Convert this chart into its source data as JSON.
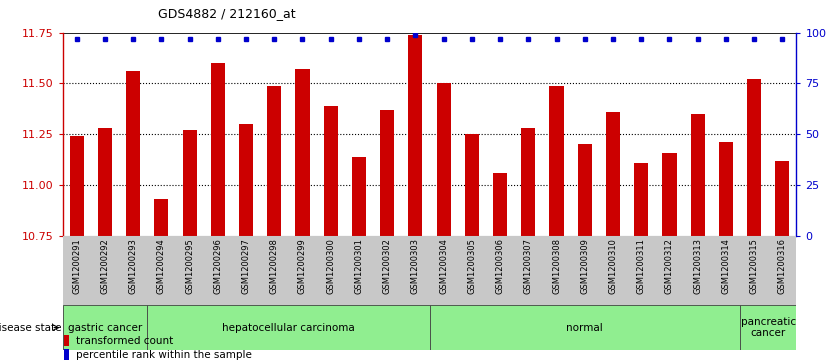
{
  "title": "GDS4882 / 212160_at",
  "samples": [
    "GSM1200291",
    "GSM1200292",
    "GSM1200293",
    "GSM1200294",
    "GSM1200295",
    "GSM1200296",
    "GSM1200297",
    "GSM1200298",
    "GSM1200299",
    "GSM1200300",
    "GSM1200301",
    "GSM1200302",
    "GSM1200303",
    "GSM1200304",
    "GSM1200305",
    "GSM1200306",
    "GSM1200307",
    "GSM1200308",
    "GSM1200309",
    "GSM1200310",
    "GSM1200311",
    "GSM1200312",
    "GSM1200313",
    "GSM1200314",
    "GSM1200315",
    "GSM1200316"
  ],
  "bar_values": [
    11.24,
    11.28,
    11.56,
    10.93,
    11.27,
    11.6,
    11.3,
    11.49,
    11.57,
    11.39,
    11.14,
    11.37,
    11.74,
    11.5,
    11.25,
    11.06,
    11.28,
    11.49,
    11.2,
    11.36,
    11.11,
    11.16,
    11.35,
    11.21,
    11.52,
    11.12
  ],
  "percentile_values": [
    97,
    97,
    97,
    97,
    97,
    97,
    97,
    97,
    97,
    97,
    97,
    97,
    99,
    97,
    97,
    97,
    97,
    97,
    97,
    97,
    97,
    97,
    97,
    97,
    97,
    97
  ],
  "ymin": 10.75,
  "ymax": 11.75,
  "y_ticks_left": [
    10.75,
    11.0,
    11.25,
    11.5,
    11.75
  ],
  "y_ticks_right": [
    0,
    25,
    50,
    75,
    100
  ],
  "bar_color": "#cc0000",
  "percentile_color": "#0000cc",
  "grid_color": "#333333",
  "xlabel_bg": "#c8c8c8",
  "groups": [
    {
      "label": "gastric cancer",
      "start": 0,
      "end": 2,
      "color": "#90ee90"
    },
    {
      "label": "hepatocellular carcinoma",
      "start": 3,
      "end": 12,
      "color": "#90ee90"
    },
    {
      "label": "normal",
      "start": 13,
      "end": 23,
      "color": "#90ee90"
    },
    {
      "label": "pancreatic\ncancer",
      "start": 24,
      "end": 25,
      "color": "#90ee90"
    }
  ],
  "legend_items": [
    {
      "color": "#cc0000",
      "label": "transformed count"
    },
    {
      "color": "#0000cc",
      "label": "percentile rank within the sample"
    }
  ],
  "disease_state_label": "disease state"
}
